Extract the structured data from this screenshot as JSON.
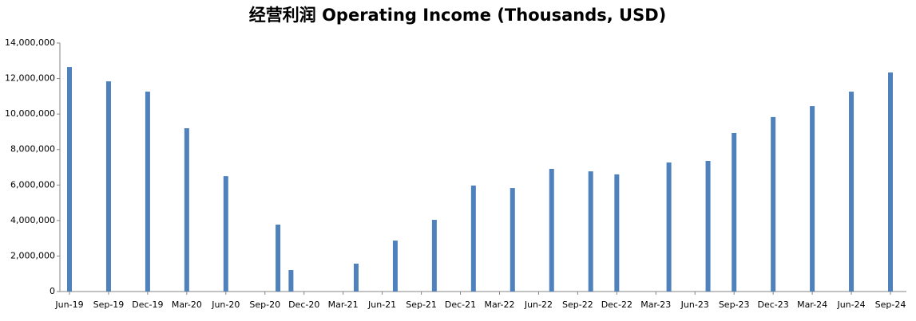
{
  "chart_data": {
    "type": "bar",
    "title": "经营利润 Operating Income (Thousands, USD)",
    "x": [
      "2019-06",
      "2019-09",
      "2019-12",
      "2020-03",
      "2020-06",
      "2020-10",
      "2020-11",
      "2021-04",
      "2021-07",
      "2021-10",
      "2022-01",
      "2022-04",
      "2022-07",
      "2022-10",
      "2022-12",
      "2023-04",
      "2023-07",
      "2023-09",
      "2023-12",
      "2024-03",
      "2024-06",
      "2024-09"
    ],
    "values": [
      12650000,
      11840000,
      11260000,
      9200000,
      6500000,
      3770000,
      1210000,
      1570000,
      2870000,
      4040000,
      5970000,
      5830000,
      6910000,
      6770000,
      6600000,
      7270000,
      7360000,
      8930000,
      9830000,
      10450000,
      11260000,
      12340000
    ],
    "color": "#4f81bd",
    "xlim": [
      "2019-06",
      "2024-09"
    ],
    "xticks": [
      {
        "value": "2019-06",
        "label": "Jun-19"
      },
      {
        "value": "2019-09",
        "label": "Sep-19"
      },
      {
        "value": "2019-12",
        "label": "Dec-19"
      },
      {
        "value": "2020-03",
        "label": "Mar-20"
      },
      {
        "value": "2020-06",
        "label": "Jun-20"
      },
      {
        "value": "2020-09",
        "label": "Sep-20"
      },
      {
        "value": "2020-12",
        "label": "Dec-20"
      },
      {
        "value": "2021-03",
        "label": "Mar-21"
      },
      {
        "value": "2021-06",
        "label": "Jun-21"
      },
      {
        "value": "2021-09",
        "label": "Sep-21"
      },
      {
        "value": "2021-12",
        "label": "Dec-21"
      },
      {
        "value": "2022-03",
        "label": "Mar-22"
      },
      {
        "value": "2022-06",
        "label": "Jun-22"
      },
      {
        "value": "2022-09",
        "label": "Sep-22"
      },
      {
        "value": "2022-12",
        "label": "Dec-22"
      },
      {
        "value": "2023-03",
        "label": "Mar-23"
      },
      {
        "value": "2023-06",
        "label": "Jun-23"
      },
      {
        "value": "2023-09",
        "label": "Sep-23"
      },
      {
        "value": "2023-12",
        "label": "Dec-23"
      },
      {
        "value": "2024-03",
        "label": "Mar-24"
      },
      {
        "value": "2024-06",
        "label": "Jun-24"
      },
      {
        "value": "2024-09",
        "label": "Sep-24"
      }
    ],
    "ylim": [
      0,
      14000000
    ],
    "yticks": [
      0,
      {
        "value": 2000000,
        "label": "2,000,000"
      },
      {
        "value": 4000000,
        "label": "4,000,000"
      },
      {
        "value": 6000000,
        "label": "6,000,000"
      },
      {
        "value": 8000000,
        "label": "8,000,000"
      },
      {
        "value": 10000000,
        "label": "10,000,000"
      },
      {
        "value": 12000000,
        "label": "12,000,000"
      },
      {
        "value": 14000000,
        "label": "14,000,000"
      }
    ],
    "grid": false
  }
}
